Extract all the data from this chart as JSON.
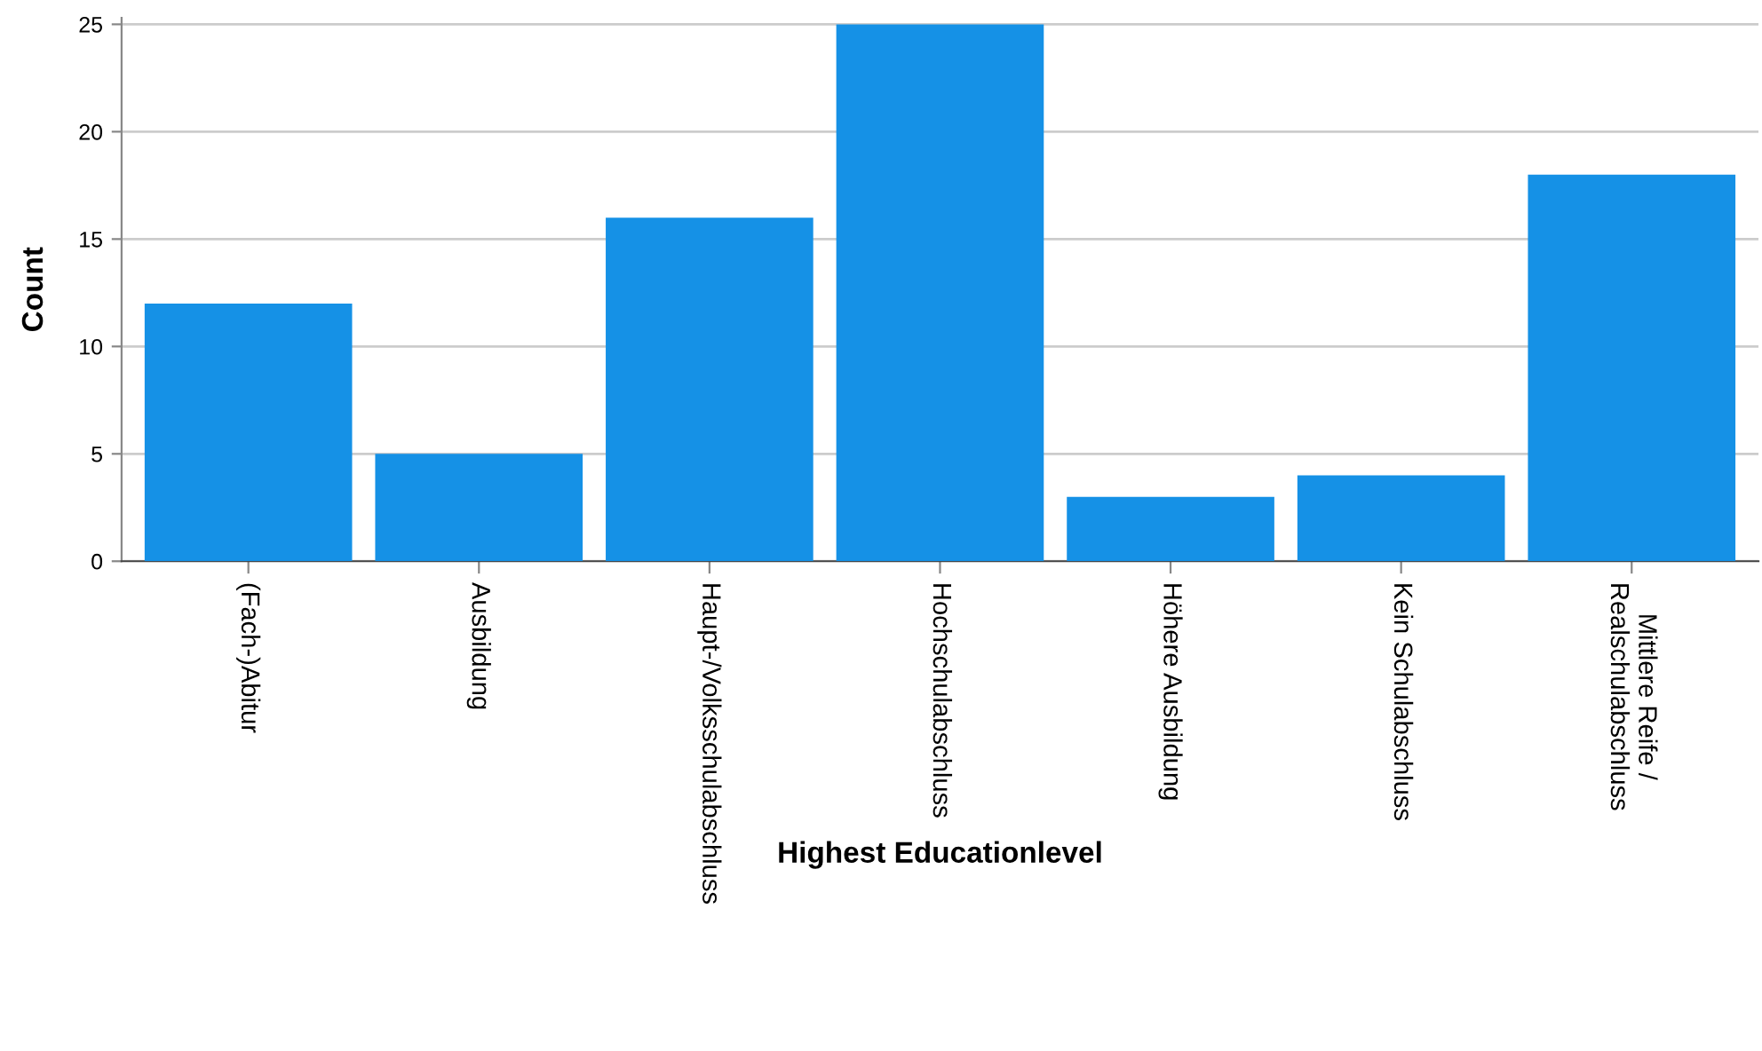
{
  "chart_data": {
    "type": "bar",
    "xlabel": "Highest Educationlevel",
    "ylabel": "Count",
    "categories": [
      "(Fach-)Abitur",
      "Ausbildung",
      "Haupt-/Volksschulabschluss",
      "Hochschulabschluss",
      "Höhere Ausbildung",
      "Kein Schulabschluss",
      "Mittlere Reife /\nRealschulabschluss"
    ],
    "values": [
      12,
      5,
      16,
      25,
      3,
      4,
      18
    ],
    "color": "#1591e6",
    "ylim": [
      0,
      25.3
    ],
    "yticks": [
      0,
      5,
      10,
      15,
      20,
      25
    ],
    "grid": "y",
    "legend": false
  }
}
